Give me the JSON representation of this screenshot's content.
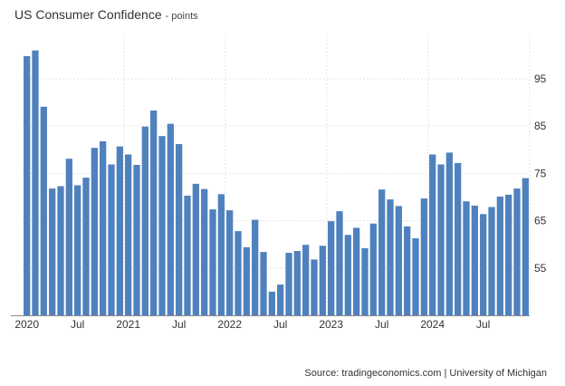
{
  "chart_data": {
    "type": "bar",
    "title": "US Consumer Confidence",
    "unit": "points",
    "x": [
      "2020-01",
      "2020-02",
      "2020-03",
      "2020-04",
      "2020-05",
      "2020-06",
      "2020-07",
      "2020-08",
      "2020-09",
      "2020-10",
      "2020-11",
      "2020-12",
      "2021-01",
      "2021-02",
      "2021-03",
      "2021-04",
      "2021-05",
      "2021-06",
      "2021-07",
      "2021-08",
      "2021-09",
      "2021-10",
      "2021-11",
      "2021-12",
      "2022-01",
      "2022-02",
      "2022-03",
      "2022-04",
      "2022-05",
      "2022-06",
      "2022-07",
      "2022-08",
      "2022-09",
      "2022-10",
      "2022-11",
      "2022-12",
      "2023-01",
      "2023-02",
      "2023-03",
      "2023-04",
      "2023-05",
      "2023-06",
      "2023-07",
      "2023-08",
      "2023-09",
      "2023-10",
      "2023-11",
      "2023-12",
      "2024-01",
      "2024-02",
      "2024-03",
      "2024-04",
      "2024-05",
      "2024-06",
      "2024-07",
      "2024-08",
      "2024-09",
      "2024-10",
      "2024-11",
      "2024-12"
    ],
    "values": [
      99.8,
      101.0,
      89.1,
      71.8,
      72.3,
      78.1,
      72.5,
      74.1,
      80.4,
      81.8,
      76.9,
      80.7,
      79.0,
      76.8,
      84.9,
      88.3,
      82.9,
      85.5,
      81.2,
      70.3,
      72.8,
      71.7,
      67.4,
      70.6,
      67.2,
      62.8,
      59.4,
      65.2,
      58.4,
      50.0,
      51.5,
      58.2,
      58.6,
      59.9,
      56.8,
      59.7,
      64.9,
      67.0,
      62.0,
      63.5,
      59.2,
      64.4,
      71.6,
      69.5,
      68.1,
      63.8,
      61.3,
      69.7,
      79.0,
      76.9,
      79.4,
      77.2,
      69.1,
      68.2,
      66.4,
      67.9,
      70.1,
      70.5,
      71.8,
      74.0
    ],
    "x_tick_labels": [
      "2020",
      "Jul",
      "2021",
      "Jul",
      "2022",
      "Jul",
      "2023",
      "Jul",
      "2024",
      "Jul"
    ],
    "y_ticks": [
      55,
      65,
      75,
      85,
      95
    ],
    "ylim": [
      45,
      104
    ],
    "grid": true,
    "color": "#4f81bd",
    "source": "Source: tradingeconomics.com | University of Michigan"
  }
}
